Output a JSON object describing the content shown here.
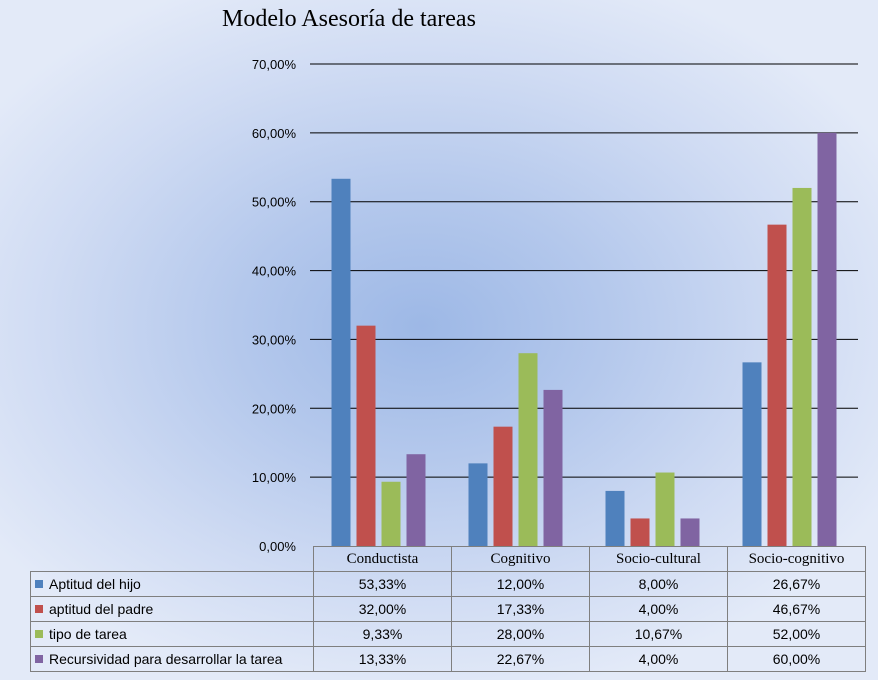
{
  "chart_data": {
    "type": "bar",
    "title": "Modelo Asesoría de tareas",
    "xlabel": "",
    "ylabel": "",
    "ylim": [
      0,
      70
    ],
    "y_ticks": [
      "0,00%",
      "10,00%",
      "20,00%",
      "30,00%",
      "40,00%",
      "50,00%",
      "60,00%",
      "70,00%"
    ],
    "grid": true,
    "legend": "data-table",
    "categories": [
      "Conductista",
      "Cognitivo",
      "Socio-cultural",
      "Socio-cognitivo"
    ],
    "series": [
      {
        "name": "Aptitud del hijo",
        "color": "#4f81bd",
        "values": [
          53.33,
          12.0,
          8.0,
          26.67
        ],
        "labels": [
          "53,33%",
          "12,00%",
          "8,00%",
          "26,67%"
        ]
      },
      {
        "name": "aptitud del padre",
        "color": "#c0504d",
        "values": [
          32.0,
          17.33,
          4.0,
          46.67
        ],
        "labels": [
          "32,00%",
          "17,33%",
          "4,00%",
          "46,67%"
        ]
      },
      {
        "name": "tipo de tarea",
        "color": "#9bbb59",
        "values": [
          9.33,
          28.0,
          10.67,
          52.0
        ],
        "labels": [
          "9,33%",
          "28,00%",
          "10,67%",
          "52,00%"
        ]
      },
      {
        "name": "Recursividad para desarrollar la tarea",
        "color": "#8064a2",
        "values": [
          13.33,
          22.67,
          4.0,
          60.0
        ],
        "labels": [
          "13,33%",
          "22,67%",
          "4,00%",
          "60,00%"
        ]
      }
    ]
  }
}
